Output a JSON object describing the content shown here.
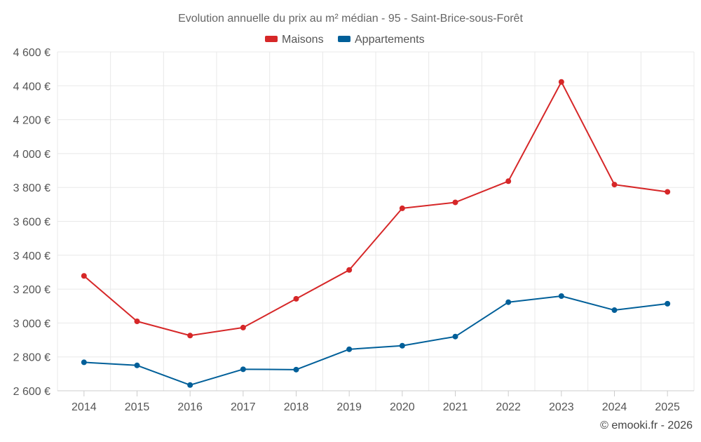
{
  "chart_data": {
    "type": "line",
    "title": "Evolution annuelle du prix au m² médian - 95 - Saint-Brice-sous-Forêt",
    "xlabel": "",
    "ylabel": "",
    "categories": [
      "2014",
      "2015",
      "2016",
      "2017",
      "2018",
      "2019",
      "2020",
      "2021",
      "2022",
      "2023",
      "2024",
      "2025"
    ],
    "ylim": [
      2600,
      4600
    ],
    "yticks": [
      2600,
      2800,
      3000,
      3200,
      3400,
      3600,
      3800,
      4000,
      4200,
      4400,
      4600
    ],
    "ytick_labels": [
      "2 600 €",
      "2 800 €",
      "3 000 €",
      "3 200 €",
      "3 400 €",
      "3 600 €",
      "3 800 €",
      "4 000 €",
      "4 200 €",
      "4 400 €",
      "4 600 €"
    ],
    "legend_position": "top-center",
    "grid": true,
    "series": [
      {
        "name": "Maisons",
        "color": "#d62728",
        "values": [
          3278,
          3010,
          2926,
          2973,
          3143,
          3313,
          3677,
          3712,
          3837,
          4423,
          3817,
          3774
        ]
      },
      {
        "name": "Appartements",
        "color": "#005f99",
        "values": [
          2768,
          2750,
          2634,
          2727,
          2725,
          2845,
          2866,
          2920,
          3123,
          3159,
          3076,
          3114
        ]
      }
    ]
  },
  "credit": "© emooki.fr - 2026"
}
